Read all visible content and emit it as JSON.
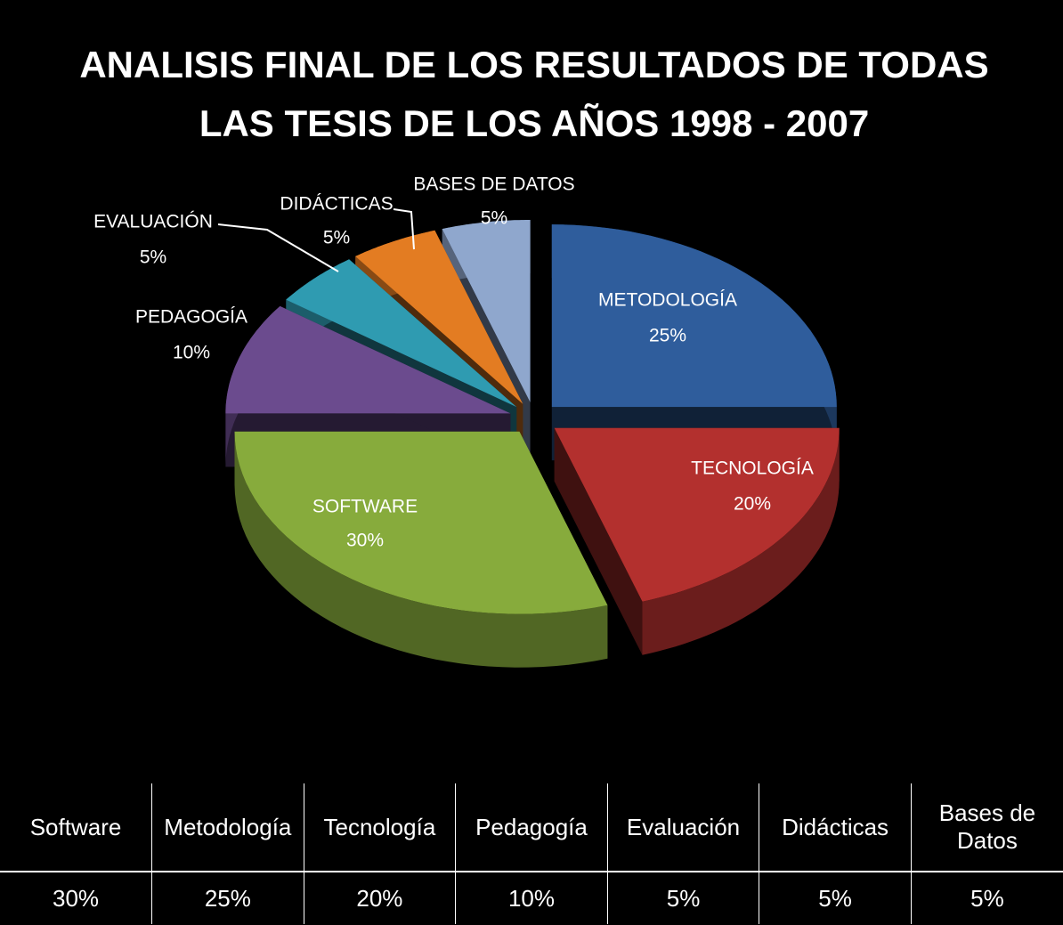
{
  "chart_data": {
    "type": "pie3d",
    "title": [
      "ANALISIS FINAL DE LOS RESULTADOS DE TODAS",
      "LAS TESIS DE LOS AÑOS 1998 - 2007"
    ],
    "categories": [
      "METODOLOGÍA",
      "TECNOLOGÍA",
      "SOFTWARE",
      "PEDAGOGÍA",
      "EVALUACIÓN",
      "DIDÁCTICAS",
      "BASES DE DATOS"
    ],
    "values": [
      25,
      20,
      30,
      10,
      5,
      5,
      5
    ],
    "value_labels": [
      "25%",
      "20%",
      "30%",
      "10%",
      "5%",
      "5%",
      "5%"
    ],
    "colors": [
      "#2f5d9c",
      "#b3302e",
      "#87ab3c",
      "#6b4b8e",
      "#2f9bb1",
      "#e37c22",
      "#8fa7cd"
    ]
  },
  "table": {
    "rows": [
      [
        "Software",
        "Metodología",
        "Tecnología",
        "Pedagogía",
        "Evaluación",
        "Didácticas",
        "Bases de Datos"
      ],
      [
        "30%",
        "25%",
        "20%",
        "10%",
        "5%",
        "5%",
        "5%"
      ]
    ]
  }
}
